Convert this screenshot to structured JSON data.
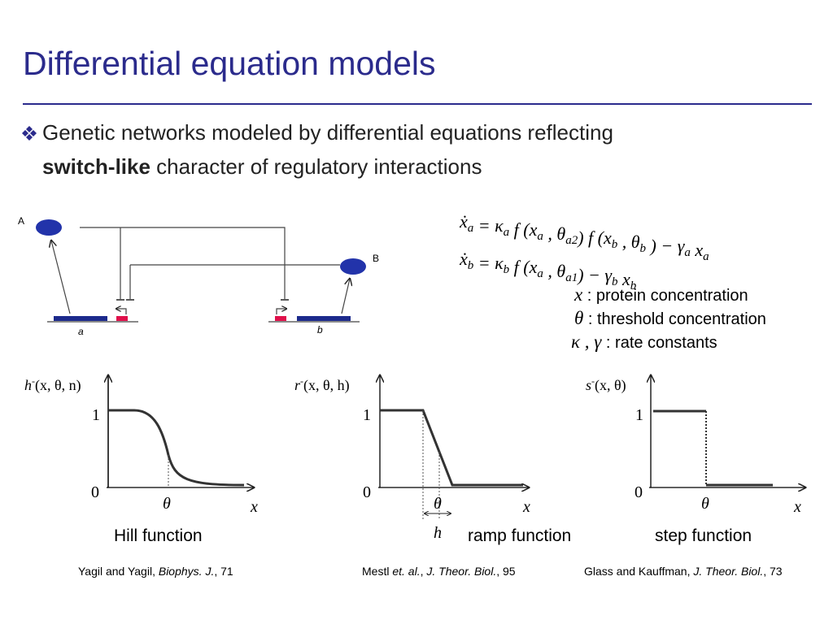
{
  "title": "Differential equation models",
  "bullet": {
    "line1": "Genetic networks modeled by differential equations reflecting",
    "bold": "switch-like",
    "line2": " character of regulatory interactions"
  },
  "diagram": {
    "protein_a": "A",
    "protein_b": "B",
    "gene_a": "a",
    "gene_b": "b"
  },
  "equations": [
    [
      {
        "text": "ẋ",
        "sub": "a"
      },
      {
        "text": " = κ",
        "sub": "a"
      },
      {
        "text": " f (x",
        "sub": "a"
      },
      {
        "text": " , θ",
        "sub": "a2"
      },
      {
        "text": ") f (x",
        "sub": "b"
      },
      {
        "text": " , θ",
        "sub": "b"
      },
      {
        "text": " ) − γ",
        "sub": "a"
      },
      {
        "text": " x",
        "sub": "a"
      }
    ],
    [
      {
        "text": "ẋ",
        "sub": "b"
      },
      {
        "text": " = κ",
        "sub": "b"
      },
      {
        "text": " f (x",
        "sub": "a"
      },
      {
        "text": " , θ",
        "sub": "a1"
      },
      {
        "text": ") − γ",
        "sub": "b"
      },
      {
        "text": " x",
        "sub": "b"
      }
    ]
  ],
  "legend": [
    {
      "symbol": "x",
      "text": " : protein concentration"
    },
    {
      "symbol": "θ",
      "text": " : threshold concentration"
    },
    {
      "symbol": "κ , γ",
      "text": " : rate constants"
    }
  ],
  "plots": [
    {
      "name": "h",
      "sup": "-",
      "args": "(x, θ, n)",
      "one": "1",
      "zero": "0",
      "theta": "θ",
      "x": "x",
      "caption": "Hill function",
      "citation": {
        "authors": "Yagil and Yagil, ",
        "journal": "Biophys. J.",
        "volume": ", 71"
      }
    },
    {
      "name": "r",
      "sup": "-",
      "args": "(x, θ, h)",
      "one": "1",
      "zero": "0",
      "theta": "θ",
      "x": "x",
      "h": "h",
      "caption": "ramp function",
      "citation": {
        "authors": "Mestl ",
        "etal": "et. al.",
        "sep": ", ",
        "journal": "J. Theor. Biol.",
        "volume": ", 95"
      }
    },
    {
      "name": "s",
      "sup": "-",
      "args": "(x, θ)",
      "one": "1",
      "zero": "0",
      "theta": "θ",
      "x": "x",
      "caption": "step function",
      "citation": {
        "authors": "Glass and Kauffman, ",
        "journal": "J. Theor. Biol.",
        "volume": ", 73"
      }
    }
  ]
}
